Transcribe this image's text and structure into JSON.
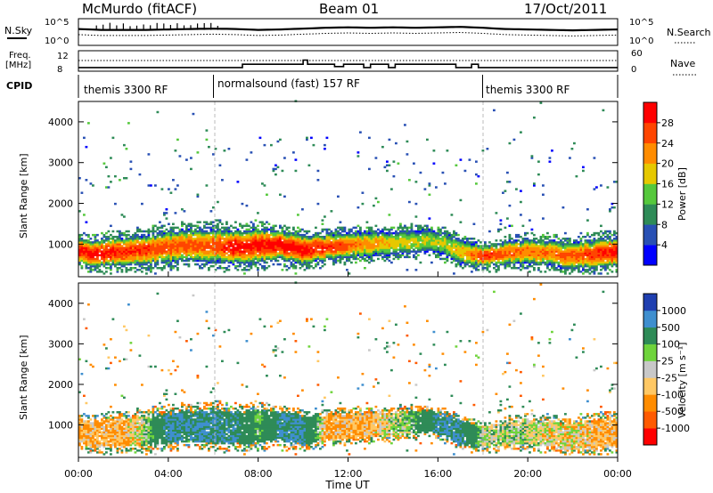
{
  "header": {
    "radar": "McMurdo (fitACF)",
    "beam": "Beam 01",
    "date": "17/Oct/2011"
  },
  "left_labels": {
    "nsky": "N.Sky",
    "freq_line1": "Freq.",
    "freq_line2": "[MHz]",
    "cpid": "CPID"
  },
  "right_labels": {
    "nsearch": "N.Search",
    "nave": "Nave"
  },
  "nsky_ticks": {
    "top": "10^5",
    "bottom": "10^0"
  },
  "freq_ticks": {
    "top": "12",
    "bottom": "8"
  },
  "nave_ticks": {
    "top": "60",
    "bottom": "0"
  },
  "cpid_segments": [
    {
      "label": "themis 3300 RF",
      "start_hour": 0,
      "end_hour": 6.0
    },
    {
      "label": "normalsound (fast) 157 RF",
      "start_hour": 6.0,
      "end_hour": 18.0
    },
    {
      "label": "themis 3300 RF",
      "start_hour": 18.0,
      "end_hour": 24
    }
  ],
  "x_axis": {
    "label": "Time UT",
    "ticks": [
      "00:00",
      "04:00",
      "08:00",
      "12:00",
      "16:00",
      "20:00",
      "00:00"
    ]
  },
  "y_axis": {
    "label": "Slant Range [km]",
    "ticks": [
      "1000",
      "2000",
      "3000",
      "4000"
    ]
  },
  "power_colorbar": {
    "label": "Power [dB]",
    "ticks": [
      "4",
      "8",
      "12",
      "16",
      "20",
      "24",
      "28"
    ],
    "colors": [
      "#0000ff",
      "#2850b4",
      "#2e8b57",
      "#55c83c",
      "#e6c800",
      "#ff8c00",
      "#ff4500",
      "#ff0000"
    ]
  },
  "velocity_colorbar": {
    "label": "Velocity [m s⁻¹]",
    "ticks": [
      "1000",
      "500",
      "100",
      "25",
      "-25",
      "-100",
      "-500",
      "-1000"
    ],
    "colors": [
      "#1f3fb0",
      "#3f8fcf",
      "#2e8b57",
      "#6fd43c",
      "#c8c8c8",
      "#ffc864",
      "#ff8c00",
      "#ff5a00",
      "#ff0000"
    ]
  },
  "chart_data": {
    "type": "heatmap",
    "x_range_hours": [
      0,
      24
    ],
    "y_range_km": [
      200,
      4500
    ],
    "panels": [
      {
        "name": "Power",
        "quantity": "power_db",
        "colorscale_range": [
          0,
          30
        ]
      },
      {
        "name": "Velocity",
        "quantity": "velocity_ms",
        "colorscale_range": [
          -1000,
          1000
        ]
      }
    ],
    "power_band": {
      "hours": [
        0,
        1,
        2,
        3,
        4,
        5,
        6,
        7,
        8,
        9,
        10,
        11,
        12,
        13,
        14,
        15,
        16,
        17,
        18,
        19,
        20,
        21,
        22,
        23,
        24
      ],
      "center_km": [
        800,
        750,
        800,
        850,
        900,
        950,
        950,
        900,
        950,
        950,
        850,
        900,
        950,
        1000,
        1000,
        1050,
        1050,
        800,
        700,
        750,
        800,
        750,
        700,
        750,
        800
      ],
      "width_km": [
        600,
        650,
        700,
        700,
        750,
        750,
        800,
        800,
        800,
        700,
        700,
        650,
        600,
        600,
        550,
        550,
        500,
        600,
        500,
        550,
        600,
        600,
        650,
        700,
        700
      ],
      "peak_db": [
        28,
        28,
        26,
        26,
        24,
        24,
        24,
        28,
        28,
        28,
        28,
        26,
        24,
        20,
        18,
        16,
        16,
        18,
        26,
        24,
        22,
        22,
        24,
        26,
        28
      ]
    },
    "velocity_band_ms": [
      -100,
      -100,
      -100,
      25,
      500,
      500,
      500,
      500,
      100,
      500,
      500,
      -100,
      -100,
      -100,
      25,
      100,
      500,
      500,
      25,
      25,
      25,
      -25,
      -25,
      -100,
      -100
    ],
    "nsky_trace": [
      3.2,
      3.0,
      3.0,
      3.0,
      3.1,
      3.2,
      3.3,
      3.2,
      3.0,
      3.1,
      3.3,
      3.5,
      3.6,
      3.5,
      3.6,
      3.5,
      3.6,
      3.7,
      3.5,
      3.2,
      3.1,
      3.0,
      2.9,
      3.0,
      3.1
    ],
    "freq_mhz_steps": [
      {
        "start_hour": 0,
        "end_hour": 7.3,
        "mhz": 8.6
      },
      {
        "start_hour": 7.3,
        "end_hour": 10.0,
        "mhz": 9.3
      },
      {
        "start_hour": 10.0,
        "end_hour": 10.2,
        "mhz": 10.2
      },
      {
        "start_hour": 10.2,
        "end_hour": 11.4,
        "mhz": 9.3
      },
      {
        "start_hour": 11.4,
        "end_hour": 11.8,
        "mhz": 8.8
      },
      {
        "start_hour": 11.8,
        "end_hour": 12.7,
        "mhz": 9.3
      },
      {
        "start_hour": 12.7,
        "end_hour": 13.0,
        "mhz": 8.6
      },
      {
        "start_hour": 13.0,
        "end_hour": 13.8,
        "mhz": 9.3
      },
      {
        "start_hour": 13.8,
        "end_hour": 14.1,
        "mhz": 8.6
      },
      {
        "start_hour": 14.1,
        "end_hour": 16.8,
        "mhz": 9.3
      },
      {
        "start_hour": 16.8,
        "end_hour": 17.5,
        "mhz": 8.6
      },
      {
        "start_hour": 17.5,
        "end_hour": 17.8,
        "mhz": 9.3
      },
      {
        "start_hour": 17.8,
        "end_hour": 18.0,
        "mhz": 8.6
      },
      {
        "start_hour": 18.0,
        "end_hour": 24.0,
        "mhz": 8.6
      }
    ]
  }
}
